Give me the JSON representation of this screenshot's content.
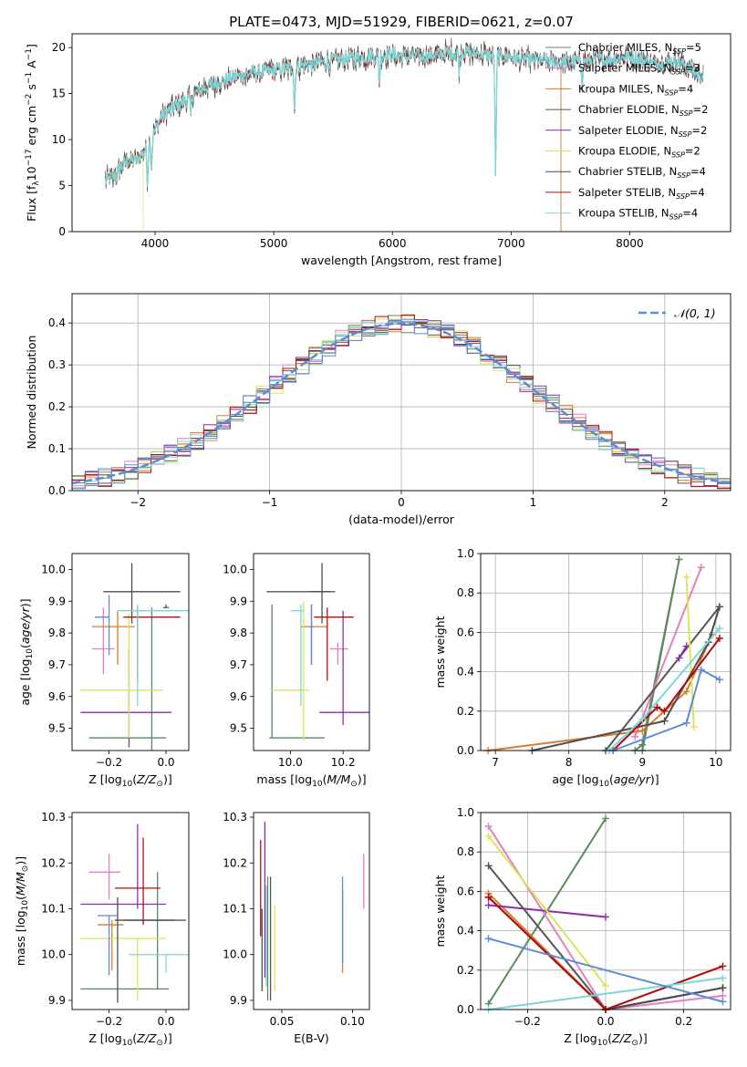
{
  "figure": {
    "title": "PLATE=0473, MJD=51929, FIBERID=0621, z=0.07"
  },
  "colors": {
    "Chabrier MILES": "#5a8a5e",
    "Salpeter MILES": "#e67ec0",
    "Kroupa MILES": "#d97c2e",
    "Chabrier ELODIE": "#555555",
    "Salpeter ELODIE": "#8e2dab",
    "Kroupa ELODIE": "#d8e65a",
    "Chabrier STELIB": "#4d4d4d",
    "Salpeter STELIB": "#b00d0d",
    "Kroupa STELIB": "#7bd6d6",
    "gaussian": "#5b8bd9",
    "extra": "#5b8bd9"
  },
  "chart_data": [
    {
      "panel": "spectrum",
      "type": "line",
      "xlabel": "wavelength [Angstrom, rest frame]",
      "ylabel": "Flux [f_λ 10^-17 erg cm^-2 s^-1 A^-1]",
      "xlim": [
        3300,
        8850
      ],
      "ylim": [
        0,
        21.5
      ],
      "xticks": [
        4000,
        5000,
        6000,
        7000,
        8000
      ],
      "yticks": [
        0,
        5,
        10,
        15,
        20
      ],
      "legend_position": "right",
      "legend": [
        {
          "name": "Chabrier MILES",
          "label": "Chabrier MILES, N_SSP=5"
        },
        {
          "name": "Salpeter MILES",
          "label": "Salpeter MILES, N_SSP=3"
        },
        {
          "name": "Kroupa MILES",
          "label": "Kroupa MILES, N_SSP=4"
        },
        {
          "name": "Chabrier ELODIE",
          "label": "Chabrier ELODIE, N_SSP=2"
        },
        {
          "name": "Salpeter ELODIE",
          "label": "Salpeter ELODIE, N_SSP=2"
        },
        {
          "name": "Kroupa ELODIE",
          "label": "Kroupa ELODIE, N_SSP=2"
        },
        {
          "name": "Chabrier STELIB",
          "label": "Chabrier STELIB, N_SSP=4"
        },
        {
          "name": "Salpeter STELIB",
          "label": "Salpeter STELIB, N_SSP=4"
        },
        {
          "name": "Kroupa STELIB",
          "label": "Kroupa STELIB, N_SSP=4"
        }
      ],
      "continuum": {
        "x": [
          3580,
          3650,
          3750,
          3850,
          3950,
          4050,
          4150,
          4250,
          4400,
          4600,
          4800,
          5000,
          5200,
          5400,
          5600,
          5800,
          6000,
          6200,
          6400,
          6600,
          6800,
          7000,
          7200,
          7400,
          7600,
          7800,
          8000,
          8200,
          8400,
          8600
        ],
        "y": [
          5.5,
          6.0,
          7.5,
          7.8,
          9.5,
          12.5,
          13.5,
          14.2,
          15.5,
          16.5,
          17.2,
          17.5,
          18.0,
          18.3,
          18.8,
          19.0,
          19.2,
          19.0,
          19.3,
          19.5,
          19.2,
          19.0,
          18.6,
          18.4,
          18.5,
          18.7,
          19.0,
          18.3,
          18.5,
          17.0
        ]
      },
      "absorption_lines": [
        {
          "x": 3935,
          "depth": 4
        },
        {
          "x": 3970,
          "depth": 3
        },
        {
          "x": 4300,
          "depth": 2
        },
        {
          "x": 5175,
          "depth": 5
        },
        {
          "x": 5890,
          "depth": 3
        },
        {
          "x": 6563,
          "depth": 2
        },
        {
          "x": 6870,
          "depth": 15
        },
        {
          "x": 7600,
          "depth": 2
        }
      ],
      "series_cutoffs": [
        {
          "name": "Kroupa ELODIE",
          "x_end": 3900
        },
        {
          "name": "Salpeter MILES",
          "x_end": 7420
        },
        {
          "name": "Kroupa MILES",
          "x_end": 7420
        },
        {
          "name": "Chabrier MILES",
          "x_end": 7420
        }
      ]
    },
    {
      "panel": "residuals",
      "type": "line",
      "xlabel": "(data-model)/error",
      "ylabel": "Normed distribution",
      "xlim": [
        -2.5,
        2.5
      ],
      "ylim": [
        0,
        0.47
      ],
      "xticks": [
        -2,
        -1,
        0,
        1,
        2
      ],
      "yticks": [
        0.0,
        0.1,
        0.2,
        0.3,
        0.4
      ],
      "grid": true,
      "legend": [
        {
          "name": "gaussian",
          "label": "𝒩(0, 1)"
        }
      ],
      "legend_position": "top-right"
    },
    {
      "panel": "Z-age",
      "type": "scatter",
      "xlabel": "Z [log10(Z/Z⊙)]",
      "ylabel": "age  [log10(age/yr)]",
      "xlim": [
        -0.33,
        0.08
      ],
      "ylim": [
        9.43,
        10.05
      ],
      "xticks": [
        -0.2,
        0.0
      ],
      "yticks": [
        9.5,
        9.6,
        9.7,
        9.8,
        9.9,
        10.0
      ],
      "points": [
        {
          "name": "Chabrier MILES",
          "x": -0.05,
          "xerr": [
            0.22,
            0.05
          ],
          "y": 9.47,
          "yerr": [
            0.04,
            0.41
          ]
        },
        {
          "name": "Salpeter MILES",
          "x": -0.22,
          "xerr": [
            0.04,
            0.04
          ],
          "y": 9.75,
          "yerr": [
            0.08,
            0.13
          ]
        },
        {
          "name": "Kroupa MILES",
          "x": -0.17,
          "xerr": [
            0.09,
            0.06
          ],
          "y": 9.82,
          "yerr": [
            0.12,
            0.05
          ]
        },
        {
          "name": "Chabrier ELODIE",
          "x": 0.0,
          "xerr": [
            0.01,
            0.01
          ],
          "y": 9.88,
          "yerr": [
            0.0,
            0.01
          ]
        },
        {
          "name": "Salpeter ELODIE",
          "x": -0.13,
          "xerr": [
            0.17,
            0.15
          ],
          "y": 9.55,
          "yerr": [
            0.11,
            0.2
          ]
        },
        {
          "name": "Kroupa ELODIE",
          "x": -0.13,
          "xerr": [
            0.17,
            0.12
          ],
          "y": 9.62,
          "yerr": [
            0.15,
            0.24
          ]
        },
        {
          "name": "Chabrier STELIB",
          "x": -0.12,
          "xerr": [
            0.1,
            0.17
          ],
          "y": 9.93,
          "yerr": [
            0.1,
            0.09
          ]
        },
        {
          "name": "Salpeter STELIB",
          "x": -0.1,
          "xerr": [
            0.05,
            0.15
          ],
          "y": 9.85,
          "yerr": [
            0.2,
            0.03
          ]
        },
        {
          "name": "Kroupa STELIB",
          "x": -0.1,
          "xerr": [
            0.07,
            0.18
          ],
          "y": 9.87,
          "yerr": [
            0.3,
            0.02
          ]
        },
        {
          "name": "extra",
          "x": -0.2,
          "xerr": [
            0.05,
            0.0
          ],
          "y": 9.85,
          "yerr": [
            0.12,
            0.07
          ]
        }
      ]
    },
    {
      "panel": "mass-age",
      "type": "scatter",
      "xlabel": "mass [log10(M/M⊙)]",
      "ylabel": "",
      "xlim": [
        9.86,
        10.3
      ],
      "ylim": [
        9.43,
        10.05
      ],
      "xticks": [
        10.0,
        10.2
      ],
      "yticks": [
        9.5,
        9.6,
        9.7,
        9.8,
        9.9,
        10.0
      ],
      "points": [
        {
          "name": "Chabrier MILES",
          "x": 9.93,
          "xerr": [
            0.01,
            0.2
          ],
          "y": 9.47,
          "yerr": [
            0.0,
            0.42
          ]
        },
        {
          "name": "Salpeter MILES",
          "x": 10.18,
          "xerr": [
            0.03,
            0.04
          ],
          "y": 9.75,
          "yerr": [
            0.05,
            0.02
          ]
        },
        {
          "name": "Kroupa MILES",
          "x": 10.08,
          "xerr": [
            0.04,
            0.06
          ],
          "y": 9.82,
          "yerr": [
            0.12,
            0.07
          ]
        },
        {
          "name": "Chabrier ELODIE",
          "x": 10.05,
          "xerr": [
            0.14,
            0.12
          ],
          "y": 9.93,
          "yerr": [
            0.0,
            0.0
          ]
        },
        {
          "name": "Salpeter ELODIE",
          "x": 10.2,
          "xerr": [
            0.09,
            0.1
          ],
          "y": 9.55,
          "yerr": [
            0.04,
            0.32
          ]
        },
        {
          "name": "Kroupa ELODIE",
          "x": 10.05,
          "xerr": [
            0.12,
            0.02
          ],
          "y": 9.62,
          "yerr": [
            0.16,
            0.28
          ]
        },
        {
          "name": "Chabrier STELIB",
          "x": 10.12,
          "xerr": [
            0.05,
            0.03
          ],
          "y": 9.93,
          "yerr": [
            0.1,
            0.09
          ]
        },
        {
          "name": "Salpeter STELIB",
          "x": 10.14,
          "xerr": [
            0.05,
            0.1
          ],
          "y": 9.85,
          "yerr": [
            0.2,
            0.03
          ]
        },
        {
          "name": "Kroupa STELIB",
          "x": 10.04,
          "xerr": [
            0.04,
            0.01
          ],
          "y": 9.87,
          "yerr": [
            0.3,
            0.02
          ]
        },
        {
          "name": "extra",
          "x": 10.08,
          "xerr": [
            0.01,
            0.01
          ],
          "y": 9.82,
          "yerr": [
            0.12,
            0.07
          ]
        }
      ]
    },
    {
      "panel": "age-massweight",
      "type": "line",
      "xlabel": "age  [log10(age/yr)]",
      "ylabel": "mass weight",
      "xlim": [
        6.8,
        10.2
      ],
      "ylim": [
        0,
        1.0
      ],
      "xticks": [
        7,
        8,
        9,
        10
      ],
      "yticks": [
        0.0,
        0.2,
        0.4,
        0.6,
        0.8,
        1.0
      ],
      "grid": true,
      "series": [
        {
          "name": "Chabrier MILES",
          "x": [
            9.0,
            9.5,
            9.0,
            8.9
          ],
          "y": [
            0.0,
            0.97,
            0.03,
            0.0
          ]
        },
        {
          "name": "Salpeter MILES",
          "x": [
            8.9,
            9.8
          ],
          "y": [
            0.07,
            0.93
          ]
        },
        {
          "name": "Kroupa MILES",
          "x": [
            6.9,
            9.0,
            9.6,
            9.95
          ],
          "y": [
            0.0,
            0.1,
            0.3,
            0.59
          ]
        },
        {
          "name": "Chabrier ELODIE",
          "x": [
            8.5,
            10.05
          ],
          "y": [
            0.0,
            0.73
          ]
        },
        {
          "name": "Salpeter ELODIE",
          "x": [
            9.5,
            9.6
          ],
          "y": [
            0.47,
            0.53
          ]
        },
        {
          "name": "Kroupa ELODIE",
          "x": [
            9.6,
            9.7
          ],
          "y": [
            0.88,
            0.12
          ]
        },
        {
          "name": "Chabrier STELIB",
          "x": [
            7.5,
            9.3,
            9.9,
            10.05
          ],
          "y": [
            0.0,
            0.15,
            0.55,
            0.73
          ]
        },
        {
          "name": "Salpeter STELIB",
          "x": [
            8.6,
            9.2,
            9.3,
            10.05
          ],
          "y": [
            0.0,
            0.22,
            0.2,
            0.57
          ]
        },
        {
          "name": "Kroupa STELIB",
          "x": [
            8.55,
            9.0,
            10.05
          ],
          "y": [
            0.0,
            0.16,
            0.62
          ]
        },
        {
          "name": "extra",
          "x": [
            8.6,
            9.6,
            9.8,
            10.05
          ],
          "y": [
            0.0,
            0.14,
            0.41,
            0.36
          ]
        }
      ]
    },
    {
      "panel": "Z-mass",
      "type": "scatter",
      "xlabel": "Z [log10(Z/Z⊙)]",
      "ylabel": "mass [log10(M/M⊙)]",
      "xlim": [
        -0.33,
        0.08
      ],
      "ylim": [
        9.88,
        10.31
      ],
      "xticks": [
        -0.2,
        0.0
      ],
      "yticks": [
        9.9,
        10.0,
        10.1,
        10.2,
        10.3
      ],
      "points": [
        {
          "name": "Chabrier MILES",
          "x": -0.03,
          "xerr": [
            0.27,
            0.04
          ],
          "y": 9.925,
          "yerr": [
            0.0,
            0.255
          ]
        },
        {
          "name": "Salpeter MILES",
          "x": -0.2,
          "xerr": [
            0.07,
            0.04
          ],
          "y": 10.18,
          "yerr": [
            0.06,
            0.04
          ]
        },
        {
          "name": "Kroupa MILES",
          "x": -0.19,
          "xerr": [
            0.05,
            0.04
          ],
          "y": 10.065,
          "yerr": [
            0.1,
            0.01
          ]
        },
        {
          "name": "Chabrier ELODIE",
          "x": -0.1,
          "xerr": [
            0.05,
            0.17
          ],
          "y": 10.075,
          "yerr": [
            0.0,
            0.0
          ]
        },
        {
          "name": "Salpeter ELODIE",
          "x": -0.1,
          "xerr": [
            0.2,
            0.1
          ],
          "y": 10.11,
          "yerr": [
            0.01,
            0.175
          ]
        },
        {
          "name": "Kroupa ELODIE",
          "x": -0.1,
          "xerr": [
            0.2,
            0.1
          ],
          "y": 10.035,
          "yerr": [
            0.135,
            0.0
          ]
        },
        {
          "name": "Chabrier STELIB",
          "x": -0.17,
          "xerr": [
            0.01,
            0.2
          ],
          "y": 10.075,
          "yerr": [
            0.18,
            0.05
          ]
        },
        {
          "name": "Salpeter STELIB",
          "x": -0.08,
          "xerr": [
            0.1,
            0.06
          ],
          "y": 10.145,
          "yerr": [
            0.08,
            0.11
          ]
        },
        {
          "name": "Kroupa STELIB",
          "x": 0.0,
          "xerr": [
            0.13,
            0.08
          ],
          "y": 10.0,
          "yerr": [
            0.04,
            0.0
          ]
        },
        {
          "name": "extra",
          "x": -0.2,
          "xerr": [
            0.04,
            0.03
          ],
          "y": 10.085,
          "yerr": [
            0.13,
            0.0
          ]
        }
      ]
    },
    {
      "panel": "EBV-mass",
      "type": "scatter",
      "xlabel": "E(B-V)",
      "ylabel": "",
      "xlim": [
        0.03,
        0.112
      ],
      "ylim": [
        9.88,
        10.31
      ],
      "xticks": [
        0.05,
        0.1
      ],
      "yticks": [
        9.9,
        10.0,
        10.1,
        10.2,
        10.3
      ],
      "points": [
        {
          "name": "Chabrier MILES",
          "x": 0.04,
          "yerr": [
            9.9,
            10.17
          ]
        },
        {
          "name": "Salpeter MILES",
          "x": 0.108,
          "yerr": [
            10.1,
            10.22
          ]
        },
        {
          "name": "Kroupa MILES",
          "x": 0.093,
          "yerr": [
            9.96,
            10.14
          ]
        },
        {
          "name": "Chabrier ELODIE",
          "x": 0.042,
          "yerr": [
            9.9,
            10.17
          ]
        },
        {
          "name": "Salpeter ELODIE",
          "x": 0.038,
          "yerr": [
            9.95,
            10.29
          ]
        },
        {
          "name": "Kroupa ELODIE",
          "x": 0.045,
          "yerr": [
            9.92,
            10.11
          ]
        },
        {
          "name": "Chabrier STELIB",
          "x": 0.036,
          "yerr": [
            9.92,
            10.1
          ]
        },
        {
          "name": "Salpeter STELIB",
          "x": 0.035,
          "yerr": [
            10.04,
            10.25
          ]
        },
        {
          "name": "Kroupa STELIB",
          "x": 0.039,
          "yerr": [
            9.93,
            10.15
          ]
        },
        {
          "name": "extra",
          "x": 0.093,
          "yerr": [
            9.98,
            10.17
          ]
        }
      ]
    },
    {
      "panel": "Z-massweight",
      "type": "line",
      "xlabel": "Z [log10(Z/Z⊙)]",
      "ylabel": "mass weight",
      "xlim": [
        -0.32,
        0.32
      ],
      "ylim": [
        0,
        1.0
      ],
      "xticks": [
        -0.2,
        0.0,
        0.2
      ],
      "yticks": [
        0.0,
        0.2,
        0.4,
        0.6,
        0.8,
        1.0
      ],
      "grid": true,
      "series": [
        {
          "name": "Chabrier MILES",
          "x": [
            -0.3,
            0.0
          ],
          "y": [
            0.03,
            0.97
          ]
        },
        {
          "name": "Salpeter MILES",
          "x": [
            -0.3,
            0.0,
            0.3
          ],
          "y": [
            0.93,
            0.0,
            0.07
          ]
        },
        {
          "name": "Kroupa MILES",
          "x": [
            -0.3,
            0.0,
            0.3
          ],
          "y": [
            0.59,
            0.0,
            0.11
          ]
        },
        {
          "name": "Chabrier ELODIE",
          "x": [
            -0.3,
            0.0,
            0.3
          ],
          "y": [
            0.73,
            0.0,
            0.11
          ]
        },
        {
          "name": "Salpeter ELODIE",
          "x": [
            -0.3,
            0.0
          ],
          "y": [
            0.53,
            0.47
          ]
        },
        {
          "name": "Kroupa ELODIE",
          "x": [
            -0.3,
            0.0
          ],
          "y": [
            0.88,
            0.12
          ]
        },
        {
          "name": "Chabrier STELIB",
          "x": [
            -0.3,
            0.0,
            0.3
          ],
          "y": [
            0.57,
            0.0,
            0.11
          ]
        },
        {
          "name": "Salpeter STELIB",
          "x": [
            -0.3,
            0.0,
            0.3
          ],
          "y": [
            0.57,
            0.0,
            0.22
          ]
        },
        {
          "name": "Kroupa STELIB",
          "x": [
            -0.3,
            0.3
          ],
          "y": [
            0.0,
            0.16
          ]
        },
        {
          "name": "extra",
          "x": [
            -0.3,
            0.3
          ],
          "y": [
            0.36,
            0.04
          ]
        }
      ]
    }
  ]
}
